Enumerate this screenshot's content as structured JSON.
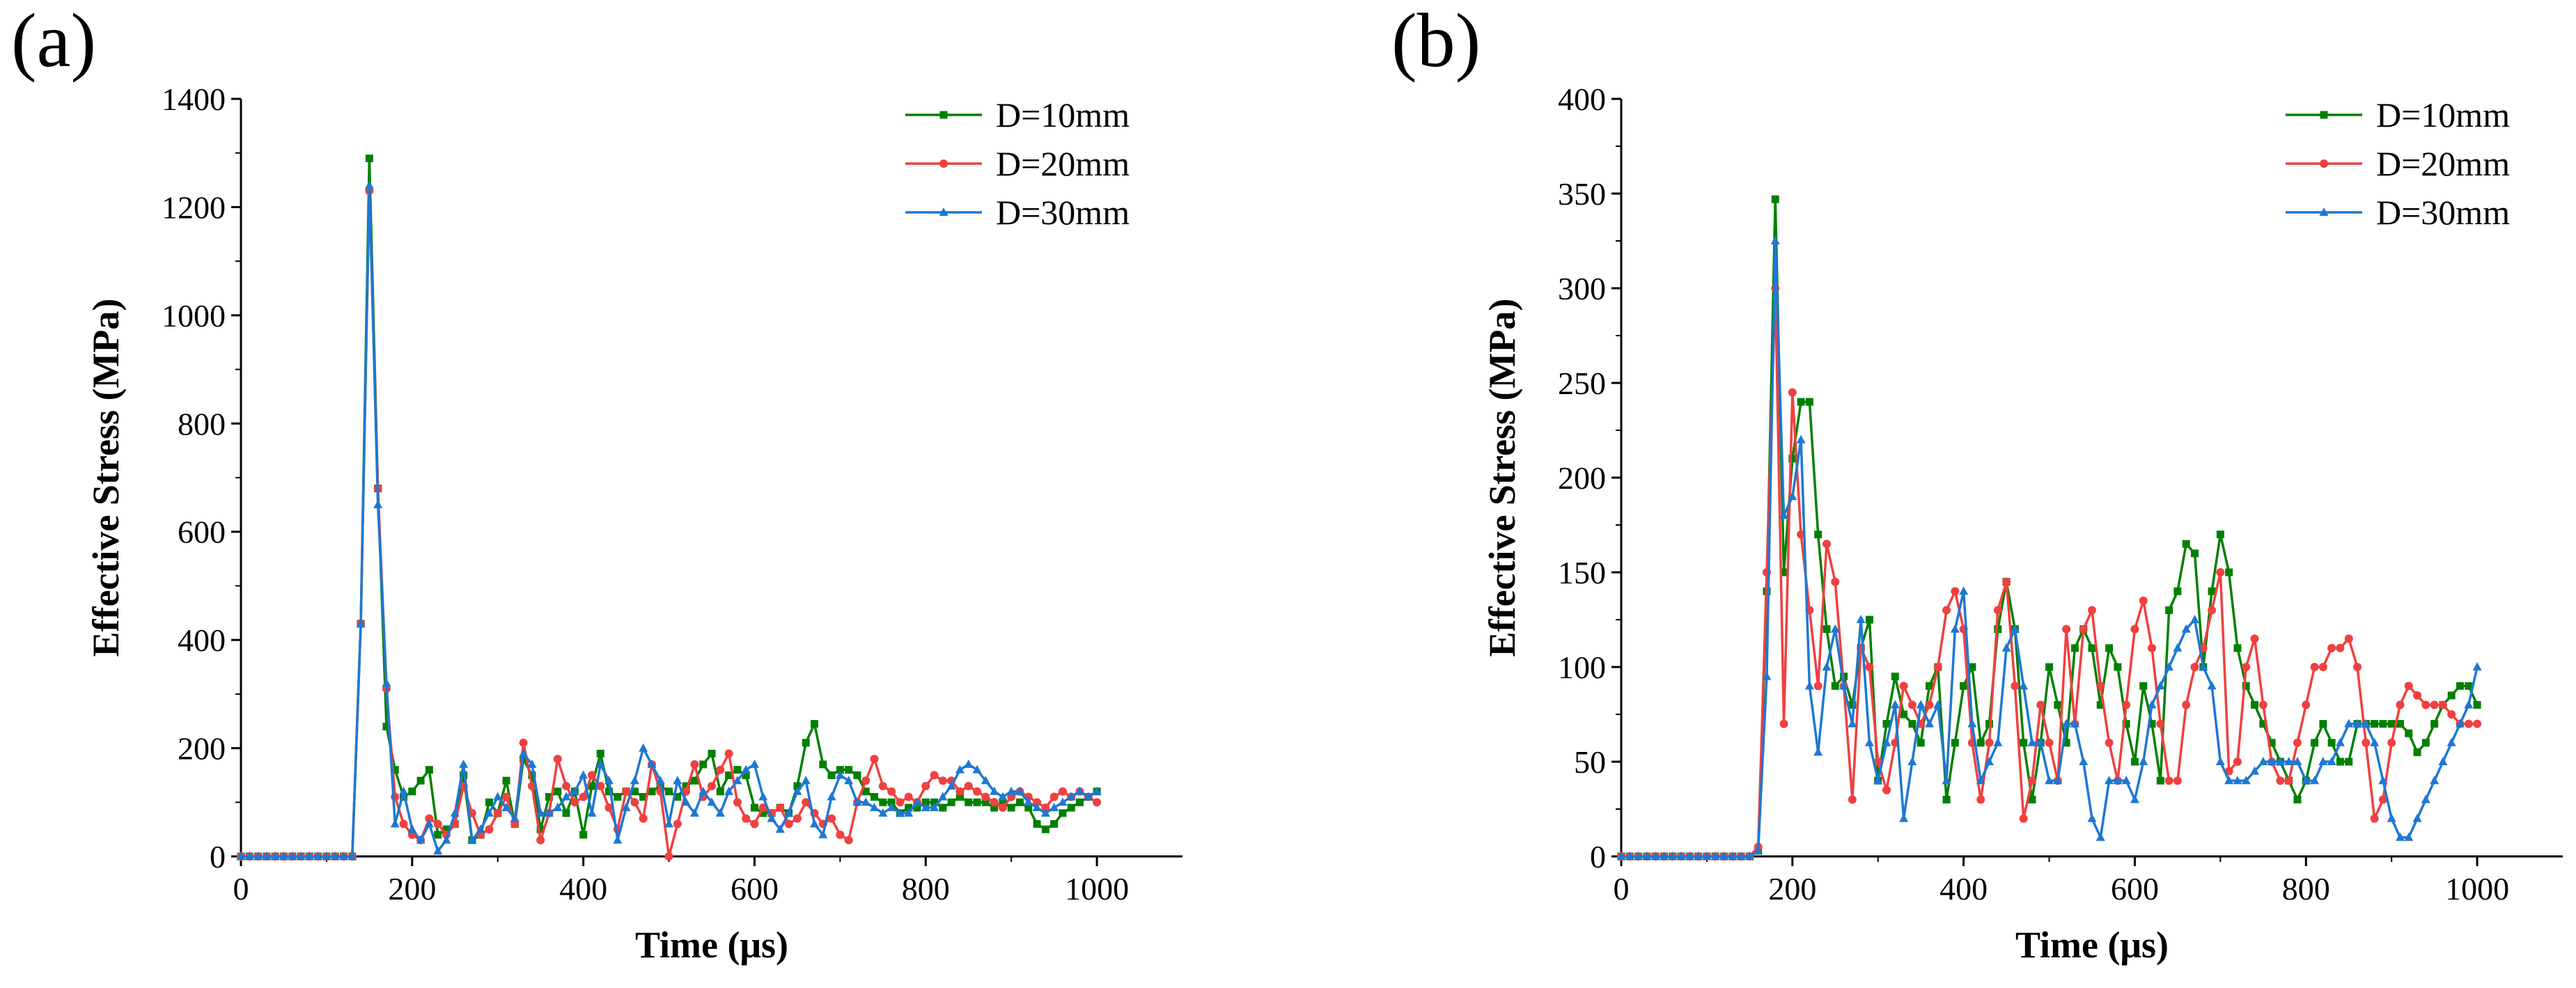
{
  "chart_data": [
    {
      "type": "line",
      "panel_label": "(a)",
      "xlabel": "Time (μs)",
      "ylabel": "Effective Stress (MPa)",
      "xlim": [
        0,
        1100
      ],
      "ylim": [
        0,
        1400
      ],
      "xticks": [
        0,
        200,
        400,
        600,
        800,
        1000
      ],
      "xtick_labels": [
        "0",
        "200",
        "400",
        "600",
        "800",
        "1000"
      ],
      "yticks": [
        0,
        200,
        400,
        600,
        800,
        1000,
        1200,
        1400
      ],
      "ytick_labels": [
        "0",
        "200",
        "400",
        "600",
        "800",
        "1000",
        "1200",
        "1400"
      ],
      "legend_position": "top-right",
      "x": [
        0,
        10,
        20,
        30,
        40,
        50,
        60,
        70,
        80,
        90,
        100,
        110,
        120,
        130,
        140,
        150,
        160,
        170,
        180,
        190,
        200,
        210,
        220,
        230,
        240,
        250,
        260,
        270,
        280,
        290,
        300,
        310,
        320,
        330,
        340,
        350,
        360,
        370,
        380,
        390,
        400,
        410,
        420,
        430,
        440,
        450,
        460,
        470,
        480,
        490,
        500,
        510,
        520,
        530,
        540,
        550,
        560,
        570,
        580,
        590,
        600,
        610,
        620,
        630,
        640,
        650,
        660,
        670,
        680,
        690,
        700,
        710,
        720,
        730,
        740,
        750,
        760,
        770,
        780,
        790,
        800,
        810,
        820,
        830,
        840,
        850,
        860,
        870,
        880,
        890,
        900,
        910,
        920,
        930,
        940,
        950,
        960,
        970,
        980,
        990,
        1000
      ],
      "series": [
        {
          "name": "D=10mm",
          "color": "#008000",
          "marker": "square",
          "values": [
            0,
            0,
            0,
            0,
            0,
            0,
            0,
            0,
            0,
            0,
            0,
            0,
            0,
            0,
            430,
            1290,
            680,
            240,
            160,
            110,
            120,
            140,
            160,
            40,
            50,
            60,
            150,
            30,
            40,
            100,
            80,
            140,
            60,
            180,
            150,
            50,
            110,
            120,
            80,
            120,
            40,
            130,
            190,
            120,
            110,
            120,
            120,
            110,
            120,
            130,
            120,
            110,
            130,
            140,
            170,
            190,
            120,
            150,
            160,
            150,
            90,
            80,
            80,
            90,
            80,
            130,
            210,
            245,
            170,
            150,
            160,
            160,
            150,
            120,
            110,
            100,
            100,
            80,
            90,
            90,
            100,
            100,
            90,
            100,
            110,
            100,
            100,
            100,
            90,
            100,
            90,
            100,
            90,
            60,
            50,
            60,
            80,
            90,
            100,
            110,
            120
          ]
        },
        {
          "name": "D=20mm",
          "color": "#f04040",
          "marker": "circle",
          "values": [
            0,
            0,
            0,
            0,
            0,
            0,
            0,
            0,
            0,
            0,
            0,
            0,
            0,
            0,
            430,
            1230,
            680,
            310,
            110,
            60,
            40,
            30,
            70,
            60,
            40,
            60,
            130,
            80,
            40,
            50,
            80,
            110,
            60,
            210,
            130,
            30,
            80,
            180,
            130,
            100,
            110,
            150,
            130,
            90,
            50,
            120,
            100,
            70,
            170,
            120,
            0,
            60,
            120,
            170,
            110,
            130,
            160,
            190,
            100,
            70,
            60,
            90,
            80,
            90,
            60,
            70,
            100,
            80,
            60,
            70,
            40,
            30,
            100,
            140,
            180,
            130,
            120,
            100,
            110,
            100,
            130,
            150,
            140,
            140,
            120,
            130,
            120,
            110,
            100,
            90,
            110,
            120,
            110,
            100,
            90,
            110,
            120,
            110,
            120,
            110,
            100
          ]
        },
        {
          "name": "D=30mm",
          "color": "#1e78d2",
          "marker": "triangle",
          "values": [
            0,
            0,
            0,
            0,
            0,
            0,
            0,
            0,
            0,
            0,
            0,
            0,
            0,
            0,
            430,
            1240,
            650,
            320,
            60,
            120,
            50,
            30,
            60,
            10,
            30,
            80,
            170,
            30,
            50,
            80,
            110,
            90,
            70,
            190,
            170,
            80,
            80,
            90,
            110,
            120,
            150,
            80,
            170,
            140,
            30,
            90,
            140,
            200,
            170,
            140,
            60,
            140,
            100,
            80,
            120,
            100,
            80,
            120,
            140,
            160,
            170,
            110,
            70,
            50,
            80,
            120,
            140,
            60,
            40,
            110,
            150,
            140,
            100,
            100,
            90,
            80,
            90,
            80,
            80,
            100,
            90,
            90,
            110,
            130,
            160,
            170,
            160,
            140,
            120,
            110,
            120,
            120,
            100,
            90,
            80,
            90,
            100,
            110,
            120,
            110,
            120
          ]
        }
      ]
    },
    {
      "type": "line",
      "panel_label": "(b)",
      "xlabel": "Time (μs)",
      "ylabel": "Effective Stress (MPa)",
      "xlim": [
        0,
        1100
      ],
      "ylim": [
        0,
        400
      ],
      "xticks": [
        0,
        200,
        400,
        600,
        800,
        1000
      ],
      "xtick_labels": [
        "0",
        "200",
        "400",
        "600",
        "800",
        "1000"
      ],
      "yticks": [
        0,
        50,
        100,
        150,
        200,
        250,
        300,
        350,
        400
      ],
      "ytick_labels": [
        "0",
        "50",
        "100",
        "150",
        "200",
        "250",
        "300",
        "350",
        "400"
      ],
      "legend_position": "top-right",
      "x": [
        0,
        10,
        20,
        30,
        40,
        50,
        60,
        70,
        80,
        90,
        100,
        110,
        120,
        130,
        140,
        150,
        160,
        170,
        180,
        190,
        200,
        210,
        220,
        230,
        240,
        250,
        260,
        270,
        280,
        290,
        300,
        310,
        320,
        330,
        340,
        350,
        360,
        370,
        380,
        390,
        400,
        410,
        420,
        430,
        440,
        450,
        460,
        470,
        480,
        490,
        500,
        510,
        520,
        530,
        540,
        550,
        560,
        570,
        580,
        590,
        600,
        610,
        620,
        630,
        640,
        650,
        660,
        670,
        680,
        690,
        700,
        710,
        720,
        730,
        740,
        750,
        760,
        770,
        780,
        790,
        800,
        810,
        820,
        830,
        840,
        850,
        860,
        870,
        880,
        890,
        900,
        910,
        920,
        930,
        940,
        950,
        960,
        970,
        980,
        990,
        1000
      ],
      "series": [
        {
          "name": "D=10mm",
          "color": "#008000",
          "marker": "square",
          "values": [
            0,
            0,
            0,
            0,
            0,
            0,
            0,
            0,
            0,
            0,
            0,
            0,
            0,
            0,
            0,
            0,
            3,
            140,
            347,
            150,
            210,
            240,
            240,
            170,
            120,
            90,
            95,
            80,
            110,
            125,
            40,
            70,
            95,
            75,
            70,
            60,
            90,
            100,
            30,
            60,
            90,
            100,
            60,
            70,
            120,
            145,
            120,
            60,
            30,
            60,
            100,
            80,
            60,
            110,
            120,
            110,
            80,
            110,
            100,
            70,
            50,
            90,
            70,
            40,
            130,
            140,
            165,
            160,
            100,
            140,
            170,
            150,
            110,
            90,
            80,
            70,
            60,
            50,
            40,
            30,
            40,
            60,
            70,
            60,
            50,
            50,
            70,
            70,
            70,
            70,
            70,
            70,
            65,
            55,
            60,
            70,
            80,
            85,
            90,
            90,
            80
          ]
        },
        {
          "name": "D=20mm",
          "color": "#f04040",
          "marker": "circle",
          "values": [
            0,
            0,
            0,
            0,
            0,
            0,
            0,
            0,
            0,
            0,
            0,
            0,
            0,
            0,
            0,
            0,
            5,
            150,
            300,
            70,
            245,
            170,
            130,
            90,
            165,
            145,
            90,
            30,
            110,
            100,
            50,
            35,
            60,
            90,
            80,
            70,
            80,
            100,
            130,
            140,
            120,
            60,
            30,
            60,
            130,
            145,
            90,
            20,
            40,
            80,
            60,
            40,
            120,
            70,
            120,
            130,
            90,
            60,
            40,
            80,
            120,
            135,
            110,
            70,
            40,
            40,
            80,
            100,
            110,
            130,
            150,
            45,
            50,
            100,
            115,
            80,
            50,
            40,
            40,
            60,
            80,
            100,
            100,
            110,
            110,
            115,
            100,
            60,
            20,
            30,
            60,
            80,
            90,
            85,
            80,
            80,
            80,
            75,
            70,
            70,
            70
          ]
        },
        {
          "name": "D=30mm",
          "color": "#1e78d2",
          "marker": "triangle",
          "values": [
            0,
            0,
            0,
            0,
            0,
            0,
            0,
            0,
            0,
            0,
            0,
            0,
            0,
            0,
            0,
            0,
            3,
            95,
            325,
            180,
            190,
            220,
            90,
            55,
            100,
            120,
            90,
            70,
            125,
            60,
            40,
            60,
            80,
            20,
            50,
            80,
            70,
            80,
            40,
            120,
            140,
            70,
            40,
            50,
            60,
            110,
            120,
            90,
            60,
            60,
            40,
            40,
            70,
            70,
            50,
            20,
            10,
            40,
            40,
            40,
            30,
            50,
            80,
            90,
            100,
            110,
            120,
            125,
            100,
            90,
            50,
            40,
            40,
            40,
            45,
            50,
            50,
            50,
            50,
            50,
            40,
            40,
            50,
            50,
            60,
            70,
            70,
            70,
            60,
            40,
            20,
            10,
            10,
            20,
            30,
            40,
            50,
            60,
            70,
            80,
            100
          ]
        }
      ]
    }
  ]
}
